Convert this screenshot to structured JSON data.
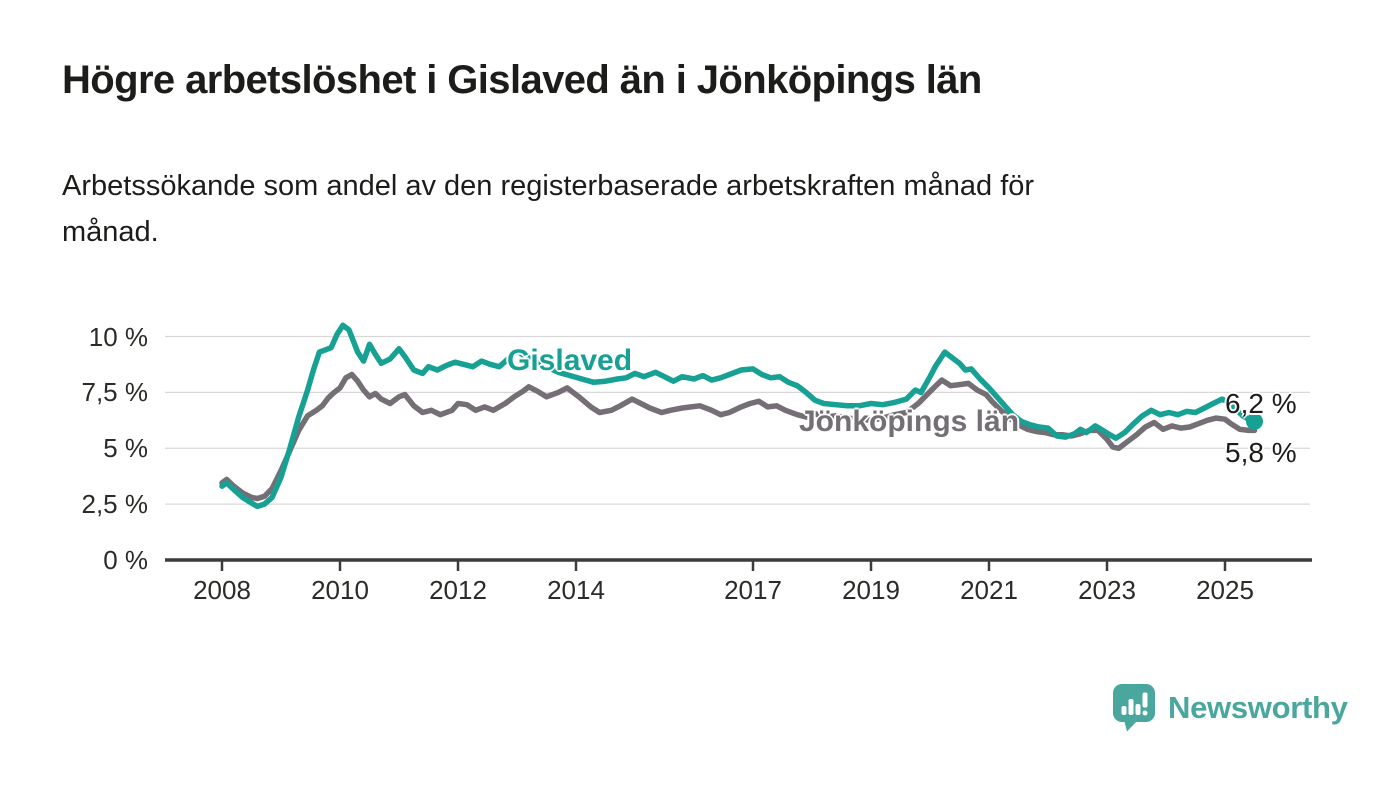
{
  "header": {
    "title": "Högre arbetslöshet i Gislaved än i Jönköpings län",
    "subtitle_line1": "Arbetssökande som andel av den registerbaserade arbetskraften månad för",
    "subtitle_line2": "månad."
  },
  "chart_data": {
    "type": "line",
    "title": "Högre arbetslöshet i Gislaved än i Jönköpings län",
    "subtitle": "Arbetssökande som andel av den registerbaserade arbetskraften månad för månad.",
    "grid": true,
    "legend_position": "inline-labels",
    "x_axis": {
      "range": [
        2007.9,
        2026.0
      ],
      "ticks": [
        2008,
        2010,
        2012,
        2014,
        2017,
        2019,
        2021,
        2023,
        2025
      ],
      "tick_labels": [
        "2008",
        "2010",
        "2012",
        "2014",
        "2017",
        "2019",
        "2021",
        "2023",
        "2025"
      ]
    },
    "y_axis": {
      "range": [
        0,
        10.9
      ],
      "unit": "%",
      "ticks": [
        {
          "value": 10,
          "label": "10 %"
        },
        {
          "value": 7.5,
          "label": "7,5 %"
        },
        {
          "value": 5,
          "label": "5 %"
        },
        {
          "value": 2.5,
          "label": "2,5 %"
        },
        {
          "value": 0,
          "label": "0 %"
        }
      ]
    },
    "style": {
      "grid_color": "#d8d8d8",
      "axis_color": "#3c3c3c",
      "tick_label_color": "#2b2b28"
    },
    "series": [
      {
        "name": "Gislaved",
        "color": "#17a094",
        "end_label": "6,2 %",
        "end_value": 6.2,
        "end_dot": true,
        "points": [
          [
            2008.0,
            3.3
          ],
          [
            2008.08,
            3.45
          ],
          [
            2008.2,
            3.15
          ],
          [
            2008.35,
            2.8
          ],
          [
            2008.5,
            2.55
          ],
          [
            2008.6,
            2.4
          ],
          [
            2008.72,
            2.5
          ],
          [
            2008.85,
            2.8
          ],
          [
            2009.0,
            3.7
          ],
          [
            2009.15,
            5.0
          ],
          [
            2009.3,
            6.4
          ],
          [
            2009.45,
            7.6
          ],
          [
            2009.55,
            8.5
          ],
          [
            2009.65,
            9.3
          ],
          [
            2009.75,
            9.4
          ],
          [
            2009.85,
            9.5
          ],
          [
            2009.95,
            10.1
          ],
          [
            2010.05,
            10.5
          ],
          [
            2010.15,
            10.3
          ],
          [
            2010.3,
            9.3
          ],
          [
            2010.4,
            8.9
          ],
          [
            2010.5,
            9.65
          ],
          [
            2010.6,
            9.2
          ],
          [
            2010.7,
            8.8
          ],
          [
            2010.85,
            9.0
          ],
          [
            2011.0,
            9.45
          ],
          [
            2011.1,
            9.1
          ],
          [
            2011.25,
            8.5
          ],
          [
            2011.4,
            8.35
          ],
          [
            2011.5,
            8.65
          ],
          [
            2011.65,
            8.5
          ],
          [
            2011.8,
            8.7
          ],
          [
            2011.95,
            8.85
          ],
          [
            2012.1,
            8.75
          ],
          [
            2012.25,
            8.65
          ],
          [
            2012.4,
            8.9
          ],
          [
            2012.55,
            8.75
          ],
          [
            2012.7,
            8.65
          ],
          [
            2012.85,
            9.0
          ],
          [
            2013.0,
            9.35
          ],
          [
            2013.15,
            9.1
          ],
          [
            2013.3,
            8.9
          ],
          [
            2013.5,
            8.65
          ],
          [
            2013.7,
            8.4
          ],
          [
            2013.9,
            8.25
          ],
          [
            2014.1,
            8.1
          ],
          [
            2014.3,
            7.95
          ],
          [
            2014.5,
            8.0
          ],
          [
            2014.7,
            8.1
          ],
          [
            2014.85,
            8.15
          ],
          [
            2015.0,
            8.35
          ],
          [
            2015.15,
            8.2
          ],
          [
            2015.35,
            8.4
          ],
          [
            2015.5,
            8.2
          ],
          [
            2015.65,
            8.0
          ],
          [
            2015.8,
            8.2
          ],
          [
            2016.0,
            8.1
          ],
          [
            2016.15,
            8.25
          ],
          [
            2016.3,
            8.05
          ],
          [
            2016.45,
            8.15
          ],
          [
            2016.6,
            8.3
          ],
          [
            2016.8,
            8.5
          ],
          [
            2017.0,
            8.55
          ],
          [
            2017.15,
            8.3
          ],
          [
            2017.3,
            8.15
          ],
          [
            2017.45,
            8.2
          ],
          [
            2017.6,
            7.95
          ],
          [
            2017.75,
            7.8
          ],
          [
            2017.9,
            7.5
          ],
          [
            2018.05,
            7.15
          ],
          [
            2018.2,
            7.0
          ],
          [
            2018.4,
            6.95
          ],
          [
            2018.6,
            6.9
          ],
          [
            2018.8,
            6.9
          ],
          [
            2019.0,
            7.0
          ],
          [
            2019.2,
            6.95
          ],
          [
            2019.4,
            7.05
          ],
          [
            2019.6,
            7.2
          ],
          [
            2019.75,
            7.6
          ],
          [
            2019.85,
            7.5
          ],
          [
            2020.0,
            8.2
          ],
          [
            2020.1,
            8.7
          ],
          [
            2020.25,
            9.3
          ],
          [
            2020.35,
            9.1
          ],
          [
            2020.5,
            8.8
          ],
          [
            2020.6,
            8.5
          ],
          [
            2020.7,
            8.55
          ],
          [
            2020.85,
            8.1
          ],
          [
            2021.0,
            7.7
          ],
          [
            2021.1,
            7.4
          ],
          [
            2021.25,
            6.95
          ],
          [
            2021.4,
            6.5
          ],
          [
            2021.55,
            6.2
          ],
          [
            2021.7,
            6.05
          ],
          [
            2021.85,
            5.95
          ],
          [
            2022.0,
            5.9
          ],
          [
            2022.15,
            5.55
          ],
          [
            2022.3,
            5.5
          ],
          [
            2022.45,
            5.65
          ],
          [
            2022.55,
            5.85
          ],
          [
            2022.65,
            5.7
          ],
          [
            2022.8,
            6.0
          ],
          [
            2022.9,
            5.85
          ],
          [
            2023.05,
            5.6
          ],
          [
            2023.15,
            5.45
          ],
          [
            2023.3,
            5.7
          ],
          [
            2023.45,
            6.1
          ],
          [
            2023.6,
            6.45
          ],
          [
            2023.75,
            6.7
          ],
          [
            2023.9,
            6.5
          ],
          [
            2024.05,
            6.6
          ],
          [
            2024.2,
            6.5
          ],
          [
            2024.35,
            6.65
          ],
          [
            2024.5,
            6.6
          ],
          [
            2024.65,
            6.8
          ],
          [
            2024.8,
            7.0
          ],
          [
            2024.95,
            7.2
          ],
          [
            2025.1,
            7.0
          ],
          [
            2025.2,
            6.7
          ],
          [
            2025.3,
            6.45
          ],
          [
            2025.4,
            6.3
          ],
          [
            2025.5,
            6.2
          ]
        ]
      },
      {
        "name": "Jönköpings län",
        "color": "#746f74",
        "end_label": "5,8 %",
        "end_value": 5.8,
        "end_dot": false,
        "points": [
          [
            2008.0,
            3.45
          ],
          [
            2008.08,
            3.6
          ],
          [
            2008.2,
            3.3
          ],
          [
            2008.35,
            3.0
          ],
          [
            2008.5,
            2.8
          ],
          [
            2008.6,
            2.75
          ],
          [
            2008.72,
            2.85
          ],
          [
            2008.85,
            3.2
          ],
          [
            2009.0,
            4.0
          ],
          [
            2009.15,
            4.9
          ],
          [
            2009.3,
            5.8
          ],
          [
            2009.45,
            6.45
          ],
          [
            2009.6,
            6.7
          ],
          [
            2009.7,
            6.9
          ],
          [
            2009.8,
            7.25
          ],
          [
            2009.9,
            7.5
          ],
          [
            2010.0,
            7.7
          ],
          [
            2010.1,
            8.15
          ],
          [
            2010.2,
            8.3
          ],
          [
            2010.3,
            8.0
          ],
          [
            2010.4,
            7.6
          ],
          [
            2010.5,
            7.3
          ],
          [
            2010.6,
            7.45
          ],
          [
            2010.7,
            7.2
          ],
          [
            2010.85,
            7.0
          ],
          [
            2011.0,
            7.3
          ],
          [
            2011.1,
            7.4
          ],
          [
            2011.25,
            6.9
          ],
          [
            2011.4,
            6.6
          ],
          [
            2011.55,
            6.7
          ],
          [
            2011.7,
            6.5
          ],
          [
            2011.9,
            6.7
          ],
          [
            2012.0,
            7.0
          ],
          [
            2012.15,
            6.95
          ],
          [
            2012.3,
            6.7
          ],
          [
            2012.45,
            6.85
          ],
          [
            2012.6,
            6.7
          ],
          [
            2012.8,
            7.0
          ],
          [
            2012.95,
            7.3
          ],
          [
            2013.1,
            7.55
          ],
          [
            2013.2,
            7.75
          ],
          [
            2013.35,
            7.55
          ],
          [
            2013.5,
            7.3
          ],
          [
            2013.7,
            7.5
          ],
          [
            2013.85,
            7.7
          ],
          [
            2014.05,
            7.3
          ],
          [
            2014.25,
            6.85
          ],
          [
            2014.4,
            6.6
          ],
          [
            2014.6,
            6.7
          ],
          [
            2014.75,
            6.9
          ],
          [
            2014.95,
            7.2
          ],
          [
            2015.1,
            7.0
          ],
          [
            2015.25,
            6.8
          ],
          [
            2015.45,
            6.6
          ],
          [
            2015.6,
            6.7
          ],
          [
            2015.8,
            6.8
          ],
          [
            2015.95,
            6.85
          ],
          [
            2016.1,
            6.9
          ],
          [
            2016.3,
            6.7
          ],
          [
            2016.45,
            6.5
          ],
          [
            2016.6,
            6.6
          ],
          [
            2016.8,
            6.85
          ],
          [
            2016.95,
            7.0
          ],
          [
            2017.1,
            7.1
          ],
          [
            2017.25,
            6.85
          ],
          [
            2017.4,
            6.9
          ],
          [
            2017.55,
            6.7
          ],
          [
            2017.75,
            6.5
          ],
          [
            2017.9,
            6.4
          ],
          [
            2018.05,
            6.55
          ],
          [
            2018.2,
            6.4
          ],
          [
            2018.4,
            6.45
          ],
          [
            2018.6,
            6.35
          ],
          [
            2018.8,
            6.3
          ],
          [
            2019.0,
            6.25
          ],
          [
            2019.2,
            6.35
          ],
          [
            2019.4,
            6.5
          ],
          [
            2019.6,
            6.6
          ],
          [
            2019.8,
            7.0
          ],
          [
            2019.95,
            7.4
          ],
          [
            2020.1,
            7.8
          ],
          [
            2020.2,
            8.05
          ],
          [
            2020.35,
            7.8
          ],
          [
            2020.5,
            7.85
          ],
          [
            2020.65,
            7.9
          ],
          [
            2020.8,
            7.6
          ],
          [
            2020.95,
            7.4
          ],
          [
            2021.05,
            7.1
          ],
          [
            2021.2,
            6.7
          ],
          [
            2021.35,
            6.35
          ],
          [
            2021.5,
            6.05
          ],
          [
            2021.65,
            5.85
          ],
          [
            2021.8,
            5.75
          ],
          [
            2021.95,
            5.7
          ],
          [
            2022.1,
            5.6
          ],
          [
            2022.25,
            5.6
          ],
          [
            2022.4,
            5.55
          ],
          [
            2022.55,
            5.65
          ],
          [
            2022.7,
            5.8
          ],
          [
            2022.85,
            5.8
          ],
          [
            2023.0,
            5.4
          ],
          [
            2023.1,
            5.05
          ],
          [
            2023.2,
            5.0
          ],
          [
            2023.35,
            5.3
          ],
          [
            2023.5,
            5.6
          ],
          [
            2023.65,
            5.95
          ],
          [
            2023.8,
            6.15
          ],
          [
            2023.95,
            5.85
          ],
          [
            2024.1,
            6.0
          ],
          [
            2024.25,
            5.9
          ],
          [
            2024.4,
            5.95
          ],
          [
            2024.55,
            6.1
          ],
          [
            2024.7,
            6.25
          ],
          [
            2024.85,
            6.35
          ],
          [
            2025.0,
            6.3
          ],
          [
            2025.1,
            6.1
          ],
          [
            2025.25,
            5.85
          ],
          [
            2025.4,
            5.8
          ],
          [
            2025.5,
            5.8
          ]
        ]
      }
    ]
  },
  "branding": {
    "logo_text": "Newsworthy",
    "logo_color": "#4aa79d",
    "logo_icon": "chart-speech-bubble-icon"
  }
}
